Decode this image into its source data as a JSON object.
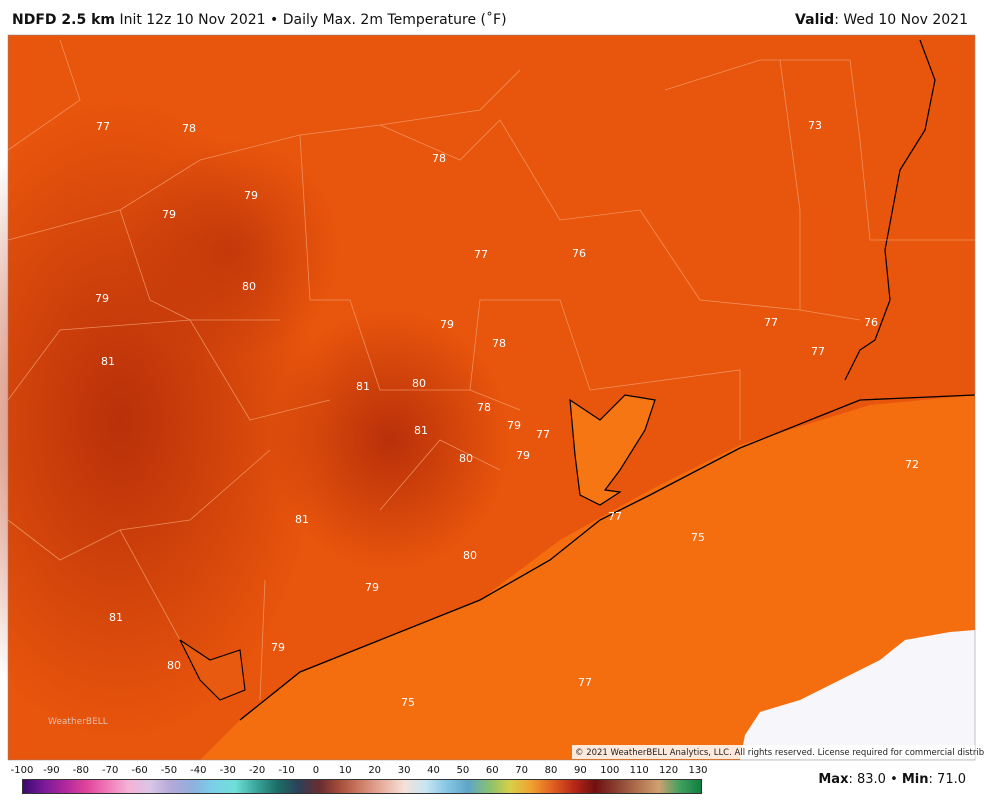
{
  "header": {
    "model": "NDFD 2.5 km",
    "description": "Init 12z 10 Nov 2021 • Daily Max. 2m Temperature (˚F)",
    "valid_label": "Valid",
    "valid_date": ": Wed 10 Nov 2021"
  },
  "map": {
    "labels": [
      "77",
      "78",
      "79",
      "79",
      "78",
      "73",
      "77",
      "76",
      "80",
      "79",
      "79",
      "78",
      "77",
      "76",
      "77",
      "81",
      "81",
      "80",
      "78",
      "79",
      "77",
      "81",
      "80",
      "79",
      "72",
      "81",
      "77",
      "75",
      "80",
      "79",
      "81",
      "79",
      "80",
      "77",
      "75"
    ],
    "watermark": "WeatherBELL",
    "copyright": "© 2021 WeatherBELL Analytics, LLC. All rights reserved. License required for commercial distribution."
  },
  "colorbar": {
    "ticks": [
      -100,
      -90,
      -80,
      -70,
      -60,
      -50,
      -40,
      -30,
      -20,
      -10,
      0,
      10,
      20,
      30,
      40,
      50,
      60,
      70,
      80,
      90,
      100,
      110,
      120,
      130
    ]
  },
  "footer": {
    "max_label": "Max",
    "max_value": ": 83.0 • ",
    "min_label": "Min",
    "min_value": ": 71.0"
  }
}
